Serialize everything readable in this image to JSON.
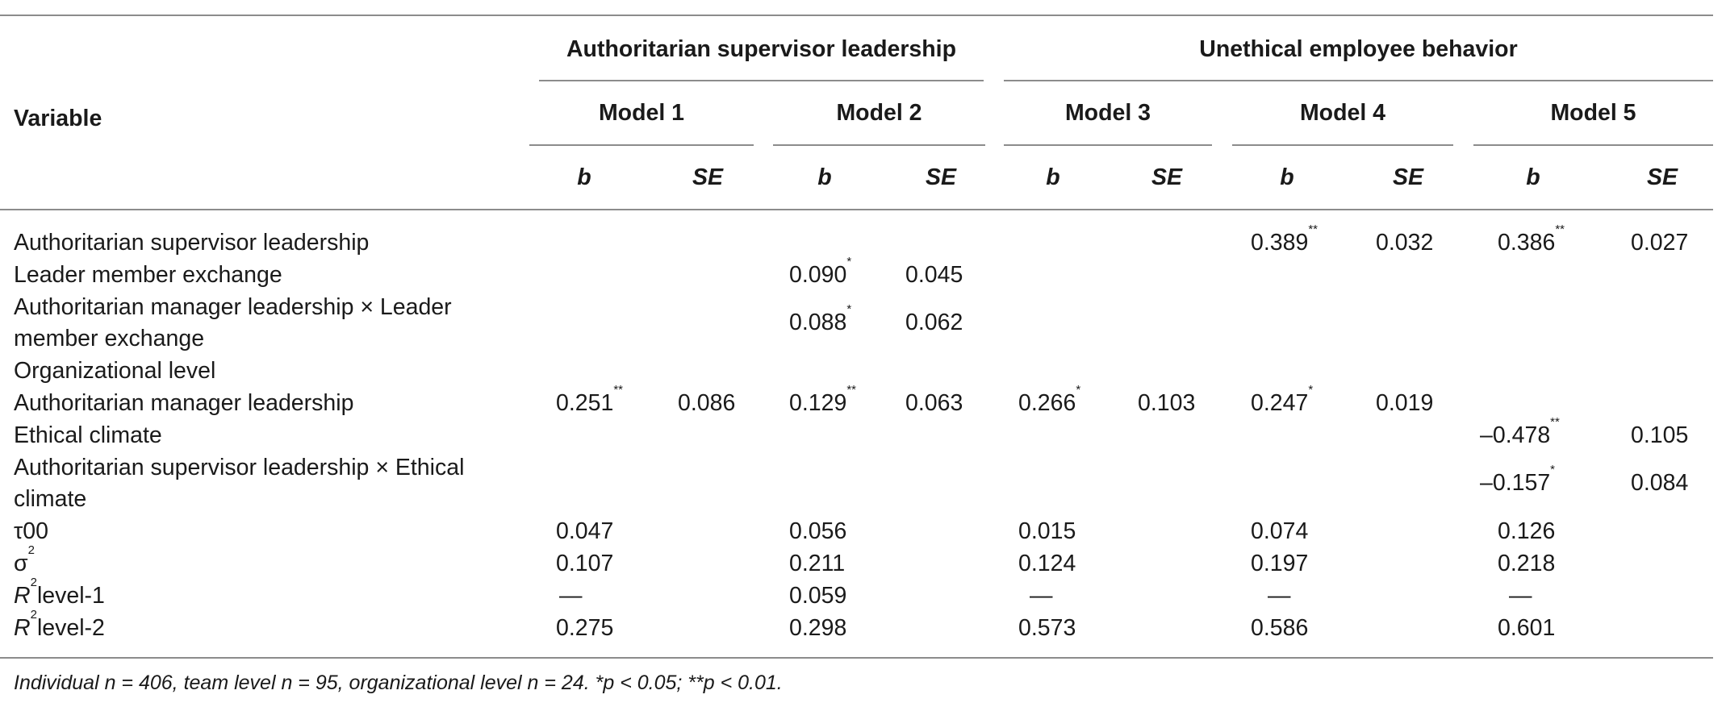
{
  "table": {
    "row_header": "Variable",
    "groups": [
      "Authoritarian supervisor leadership",
      "Unethical employee behavior"
    ],
    "models": [
      "Model 1",
      "Model 2",
      "Model 3",
      "Model 4",
      "Model 5"
    ],
    "col_b": "b",
    "col_se": "SE",
    "rows": [
      {
        "label": "Authoritarian supervisor leadership",
        "cells": [
          [
            "",
            ""
          ],
          [
            "",
            ""
          ],
          [
            "",
            ""
          ],
          [
            "0.389",
            "**",
            "0.032"
          ],
          [
            "0.386",
            "**",
            "0.027"
          ]
        ]
      },
      {
        "label": "Leader member exchange",
        "cells": [
          [
            "",
            ""
          ],
          [
            "0.090",
            "*",
            "0.045"
          ],
          [
            "",
            ""
          ],
          [
            "",
            ""
          ],
          [
            "",
            ""
          ]
        ]
      },
      {
        "label_1": "Authoritarian manager leadership × Leader",
        "label_2": "member exchange",
        "cells": [
          [
            "",
            ""
          ],
          [
            "0.088",
            "*",
            "0.062"
          ],
          [
            "",
            ""
          ],
          [
            "",
            ""
          ],
          [
            "",
            ""
          ]
        ]
      },
      {
        "label": "Organizational level"
      },
      {
        "label": "Authoritarian manager leadership",
        "cells": [
          [
            "0.251",
            "**",
            "0.086"
          ],
          [
            "0.129",
            "**",
            "0.063"
          ],
          [
            "0.266",
            "*",
            "0.103"
          ],
          [
            "0.247",
            "*",
            "0.019"
          ],
          [
            "",
            ""
          ]
        ]
      },
      {
        "label": "Ethical climate",
        "cells": [
          [
            "",
            ""
          ],
          [
            "",
            ""
          ],
          [
            "",
            ""
          ],
          [
            "",
            ""
          ],
          [
            "–0.478",
            "**",
            "0.105"
          ]
        ]
      },
      {
        "label_1": "Authoritarian supervisor leadership × Ethical",
        "label_2": "climate",
        "cells": [
          [
            "",
            ""
          ],
          [
            "",
            ""
          ],
          [
            "",
            ""
          ],
          [
            "",
            ""
          ],
          [
            "–0.157",
            "*",
            "0.084"
          ]
        ]
      },
      {
        "label": "τ00",
        "values": [
          "0.047",
          "0.056",
          "0.015",
          "0.074",
          "0.126"
        ]
      },
      {
        "label": "σ",
        "sup": "2",
        "values": [
          "0.107",
          "0.211",
          "0.124",
          "0.197",
          "0.218"
        ]
      },
      {
        "label_prefix": "R",
        "sup": "2",
        "label": "level-1",
        "values": [
          "—",
          "0.059",
          "—",
          "—",
          "—"
        ]
      },
      {
        "label_prefix": "R",
        "sup": "2",
        "label": "level-2",
        "values": [
          "0.275",
          "0.298",
          "0.573",
          "0.586",
          "0.601"
        ]
      }
    ],
    "note": "Individual n = 406, team level n = 95, organizational level n = 24. *p < 0.05; **p < 0.01."
  }
}
